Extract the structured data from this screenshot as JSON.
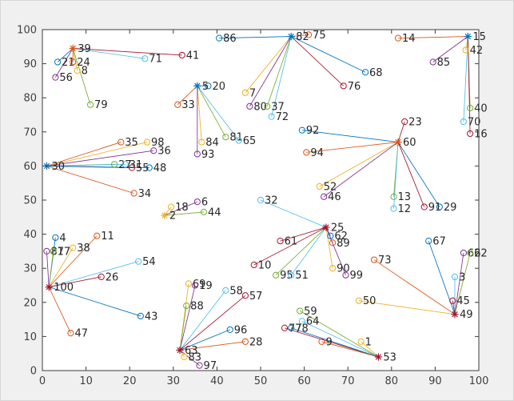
{
  "figure": {
    "background": "#f0f0f0",
    "plot_background": "#ffffff",
    "axis_color": "#3c3c3c",
    "tick_label_color": "#404040",
    "point_label_color": "#262626"
  },
  "chart_data": {
    "type": "scatter",
    "title": "",
    "xlabel": "",
    "ylabel": "",
    "xlim": [
      0,
      100
    ],
    "ylim": [
      0,
      100
    ],
    "xticks": [
      0,
      10,
      20,
      30,
      40,
      50,
      60,
      70,
      80,
      90,
      100
    ],
    "yticks": [
      0,
      10,
      20,
      30,
      40,
      50,
      60,
      70,
      80,
      90,
      100
    ],
    "grid": false,
    "legend": null,
    "palette": [
      "#0072BD",
      "#D95319",
      "#EDB120",
      "#7E2F8E",
      "#77AC30",
      "#4DBEEE",
      "#A2142F"
    ],
    "marker_styles": {
      "hub": "asterisk",
      "member": "circle"
    },
    "hubs": [
      {
        "label": "39",
        "x": 7,
        "y": 94.5,
        "color": "#D95319"
      },
      {
        "label": "82",
        "x": 57,
        "y": 98,
        "color": "#0072BD"
      },
      {
        "label": "15",
        "x": 97.5,
        "y": 98,
        "color": "#0072BD"
      },
      {
        "label": "5",
        "x": 35.5,
        "y": 83.5,
        "color": "#0072BD"
      },
      {
        "label": "60",
        "x": 81.5,
        "y": 67,
        "color": "#D95319"
      },
      {
        "label": "30",
        "x": 1,
        "y": 60,
        "color": "#0072BD"
      },
      {
        "label": "2",
        "x": 28,
        "y": 45.5,
        "color": "#EDB120"
      },
      {
        "label": "25",
        "x": 65,
        "y": 42,
        "color": "#A2142F"
      },
      {
        "label": "100",
        "x": 1.5,
        "y": 24.5,
        "color": "#A2142F"
      },
      {
        "label": "63",
        "x": 31.5,
        "y": 6,
        "color": "#A2142F"
      },
      {
        "label": "53",
        "x": 77,
        "y": 4,
        "color": "#A2142F"
      },
      {
        "label": "49",
        "x": 94.5,
        "y": 16.5,
        "color": "#A2142F"
      }
    ],
    "points": [
      {
        "label": "21",
        "x": 3.5,
        "y": 90.5,
        "hub": "39"
      },
      {
        "label": "24",
        "x": 7,
        "y": 90.5,
        "hub": "39"
      },
      {
        "label": "8",
        "x": 8,
        "y": 88,
        "hub": "39"
      },
      {
        "label": "56",
        "x": 3,
        "y": 86,
        "hub": "39"
      },
      {
        "label": "79",
        "x": 11,
        "y": 78,
        "hub": "39"
      },
      {
        "label": "71",
        "x": 23.5,
        "y": 91.5,
        "hub": "39"
      },
      {
        "label": "41",
        "x": 32,
        "y": 92.5,
        "hub": "39"
      },
      {
        "label": "86",
        "x": 40.5,
        "y": 97.5,
        "hub": "82"
      },
      {
        "label": "75",
        "x": 61,
        "y": 98.5,
        "hub": "82"
      },
      {
        "label": "7",
        "x": 46.5,
        "y": 81.5,
        "hub": "82"
      },
      {
        "label": "80",
        "x": 47.5,
        "y": 77.5,
        "hub": "82"
      },
      {
        "label": "37",
        "x": 51.5,
        "y": 77.5,
        "hub": "82"
      },
      {
        "label": "72",
        "x": 52.5,
        "y": 74.5,
        "hub": "82"
      },
      {
        "label": "76",
        "x": 69,
        "y": 83.5,
        "hub": "82"
      },
      {
        "label": "68",
        "x": 74,
        "y": 87.5,
        "hub": "82"
      },
      {
        "label": "14",
        "x": 81.5,
        "y": 97.5,
        "hub": "15"
      },
      {
        "label": "42",
        "x": 97,
        "y": 94,
        "hub": "15"
      },
      {
        "label": "85",
        "x": 89.5,
        "y": 90.5,
        "hub": "15"
      },
      {
        "label": "40",
        "x": 98,
        "y": 77,
        "hub": "15"
      },
      {
        "label": "70",
        "x": 96.5,
        "y": 73,
        "hub": "15"
      },
      {
        "label": "16",
        "x": 98,
        "y": 69.5,
        "hub": "15"
      },
      {
        "label": "20",
        "x": 38,
        "y": 83.5,
        "hub": "5"
      },
      {
        "label": "33",
        "x": 31,
        "y": 78,
        "hub": "5"
      },
      {
        "label": "84",
        "x": 36.5,
        "y": 67,
        "hub": "5"
      },
      {
        "label": "93",
        "x": 35.5,
        "y": 63.5,
        "hub": "5"
      },
      {
        "label": "81",
        "x": 42,
        "y": 68.5,
        "hub": "5"
      },
      {
        "label": "65",
        "x": 45,
        "y": 67.5,
        "hub": "5"
      },
      {
        "label": "23",
        "x": 83,
        "y": 73,
        "hub": "60"
      },
      {
        "label": "92",
        "x": 59.5,
        "y": 70.5,
        "hub": "60"
      },
      {
        "label": "94",
        "x": 60.5,
        "y": 64,
        "hub": "60"
      },
      {
        "label": "52",
        "x": 63.5,
        "y": 54,
        "hub": "60"
      },
      {
        "label": "46",
        "x": 64.5,
        "y": 51,
        "hub": "60"
      },
      {
        "label": "13",
        "x": 80.5,
        "y": 51,
        "hub": "60"
      },
      {
        "label": "12",
        "x": 80.5,
        "y": 47.5,
        "hub": "60"
      },
      {
        "label": "91",
        "x": 87.5,
        "y": 48,
        "hub": "60"
      },
      {
        "label": "29",
        "x": 91,
        "y": 48,
        "hub": "60"
      },
      {
        "label": "35",
        "x": 18,
        "y": 67,
        "hub": "30"
      },
      {
        "label": "98",
        "x": 24,
        "y": 67,
        "hub": "30"
      },
      {
        "label": "36",
        "x": 25.5,
        "y": 64.5,
        "hub": "30"
      },
      {
        "label": "27",
        "x": 16.5,
        "y": 60.5,
        "hub": "30"
      },
      {
        "label": "31",
        "x": 19,
        "y": 60.5,
        "hub": "30"
      },
      {
        "label": "55",
        "x": 20.5,
        "y": 59.5,
        "hub": "30"
      },
      {
        "label": "48",
        "x": 24.5,
        "y": 59.5,
        "hub": "30"
      },
      {
        "label": "34",
        "x": 21,
        "y": 52,
        "hub": "30"
      },
      {
        "label": "18",
        "x": 29.5,
        "y": 48,
        "hub": "2"
      },
      {
        "label": "6",
        "x": 35.5,
        "y": 49.5,
        "hub": "2"
      },
      {
        "label": "44",
        "x": 37,
        "y": 46.5,
        "hub": "2"
      },
      {
        "label": "32",
        "x": 50,
        "y": 50,
        "hub": "25"
      },
      {
        "label": "61",
        "x": 54.5,
        "y": 38,
        "hub": "25"
      },
      {
        "label": "62",
        "x": 66,
        "y": 39.5,
        "hub": "25"
      },
      {
        "label": "89",
        "x": 66.5,
        "y": 37.5,
        "hub": "25"
      },
      {
        "label": "90",
        "x": 66.5,
        "y": 30,
        "hub": "25"
      },
      {
        "label": "99",
        "x": 69.5,
        "y": 28,
        "hub": "25"
      },
      {
        "label": "95",
        "x": 53.5,
        "y": 28,
        "hub": "25"
      },
      {
        "label": "51",
        "x": 57,
        "y": 28,
        "hub": "25"
      },
      {
        "label": "10",
        "x": 48.5,
        "y": 31,
        "hub": "25"
      },
      {
        "label": "4",
        "x": 3,
        "y": 39,
        "hub": "100"
      },
      {
        "label": "11",
        "x": 12.5,
        "y": 39.5,
        "hub": "100"
      },
      {
        "label": "38",
        "x": 7,
        "y": 36,
        "hub": "100"
      },
      {
        "label": "87",
        "x": 1,
        "y": 35,
        "hub": "100"
      },
      {
        "label": "17",
        "x": 2.5,
        "y": 35,
        "hub": "100"
      },
      {
        "label": "54",
        "x": 22,
        "y": 32,
        "hub": "100"
      },
      {
        "label": "26",
        "x": 13.5,
        "y": 27.5,
        "hub": "100"
      },
      {
        "label": "43",
        "x": 22.5,
        "y": 16,
        "hub": "100"
      },
      {
        "label": "47",
        "x": 6.5,
        "y": 11,
        "hub": "100"
      },
      {
        "label": "69",
        "x": 33.5,
        "y": 25.5,
        "hub": "63"
      },
      {
        "label": "19",
        "x": 35,
        "y": 25,
        "hub": "63"
      },
      {
        "label": "88",
        "x": 33,
        "y": 19,
        "hub": "63"
      },
      {
        "label": "58",
        "x": 42,
        "y": 23.5,
        "hub": "63"
      },
      {
        "label": "57",
        "x": 46.5,
        "y": 22,
        "hub": "63"
      },
      {
        "label": "96",
        "x": 43,
        "y": 12,
        "hub": "63"
      },
      {
        "label": "28",
        "x": 46.5,
        "y": 8.5,
        "hub": "63"
      },
      {
        "label": "83",
        "x": 32.5,
        "y": 4,
        "hub": "63"
      },
      {
        "label": "97",
        "x": 36,
        "y": 1.5,
        "hub": "63"
      },
      {
        "label": "59",
        "x": 59,
        "y": 17.5,
        "hub": "53"
      },
      {
        "label": "64",
        "x": 59.5,
        "y": 14.5,
        "hub": "53"
      },
      {
        "label": "77",
        "x": 55.5,
        "y": 12.5,
        "hub": "53"
      },
      {
        "label": "78",
        "x": 57,
        "y": 12.5,
        "hub": "53"
      },
      {
        "label": "9",
        "x": 64,
        "y": 8.5,
        "hub": "53"
      },
      {
        "label": "1",
        "x": 73,
        "y": 8.5,
        "hub": "53"
      },
      {
        "label": "66",
        "x": 96.5,
        "y": 34.5,
        "hub": "49"
      },
      {
        "label": "22",
        "x": 98,
        "y": 34.5,
        "hub": "49"
      },
      {
        "label": "3",
        "x": 94.5,
        "y": 27.5,
        "hub": "49"
      },
      {
        "label": "45",
        "x": 94,
        "y": 20.5,
        "hub": "49"
      },
      {
        "label": "67",
        "x": 88.5,
        "y": 38,
        "hub": "49"
      },
      {
        "label": "73",
        "x": 76,
        "y": 32.5,
        "hub": "49"
      },
      {
        "label": "50",
        "x": 72.5,
        "y": 20.5,
        "hub": "49"
      }
    ]
  }
}
